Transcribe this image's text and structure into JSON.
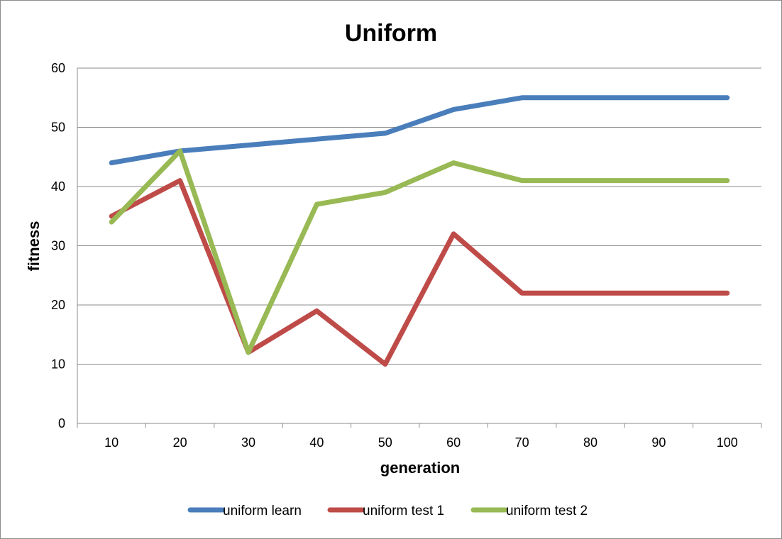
{
  "chart_data": {
    "type": "line",
    "title": "Uniform",
    "xlabel": "generation",
    "ylabel": "fitness",
    "categories": [
      "10",
      "20",
      "30",
      "40",
      "50",
      "60",
      "70",
      "80",
      "90",
      "100"
    ],
    "ylim": [
      0,
      60
    ],
    "yticks": [
      "0",
      "10",
      "20",
      "30",
      "40",
      "50",
      "60"
    ],
    "grid": true,
    "legend_position": "bottom",
    "series": [
      {
        "name": "uniform learn",
        "color": "#4a7ebb",
        "values": [
          44,
          46,
          47,
          48,
          49,
          53,
          55,
          55,
          55,
          55
        ]
      },
      {
        "name": "uniform test 1",
        "color": "#be4b48",
        "values": [
          35,
          41,
          12,
          19,
          10,
          32,
          22,
          22,
          22,
          22
        ]
      },
      {
        "name": "uniform test 2",
        "color": "#98b954",
        "values": [
          34,
          46,
          12,
          37,
          39,
          44,
          41,
          41,
          41,
          41
        ]
      }
    ]
  }
}
